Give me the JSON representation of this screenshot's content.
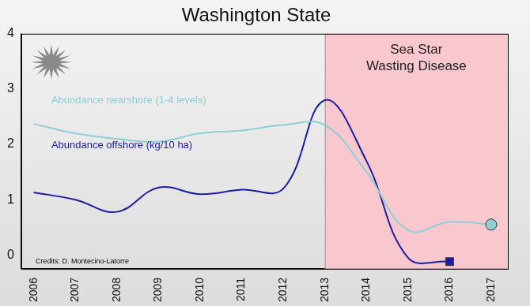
{
  "chart_data": {
    "type": "line",
    "title": "Washington State",
    "x": [
      2006,
      2007,
      2008,
      2009,
      2010,
      2011,
      2012,
      2013,
      2014,
      2015,
      2016,
      2017
    ],
    "xlim": [
      2005.7,
      2017.4
    ],
    "xticks": [
      2006,
      2007,
      2008,
      2009,
      2010,
      2011,
      2012,
      2013,
      2014,
      2015,
      2016,
      2017
    ],
    "ylim": [
      -0.25,
      4
    ],
    "yticks": [
      0,
      1,
      2,
      3,
      4
    ],
    "grid": false,
    "series": [
      {
        "name": "Abundance nearshore (1-4 levels)",
        "color": "#8ecfd6",
        "marker": "circle",
        "values": [
          2.37,
          2.2,
          2.1,
          2.05,
          2.2,
          2.25,
          2.35,
          2.35,
          1.5,
          0.45,
          0.6,
          0.55
        ]
      },
      {
        "name": "Abundance offshore (kg/10 ha)",
        "color": "#1c1ca0",
        "marker": "square",
        "values": [
          1.13,
          1.0,
          0.78,
          1.22,
          1.1,
          1.18,
          1.2,
          2.8,
          1.7,
          -0.05,
          -0.12,
          null
        ]
      }
    ],
    "shaded_region": {
      "start": 2013,
      "end": 2017.4,
      "label": [
        "Sea Star",
        "Wasting Disease"
      ],
      "color": "#f8c8ce"
    },
    "annotations": [
      "Credits: D. Montecino-Latorre"
    ]
  }
}
